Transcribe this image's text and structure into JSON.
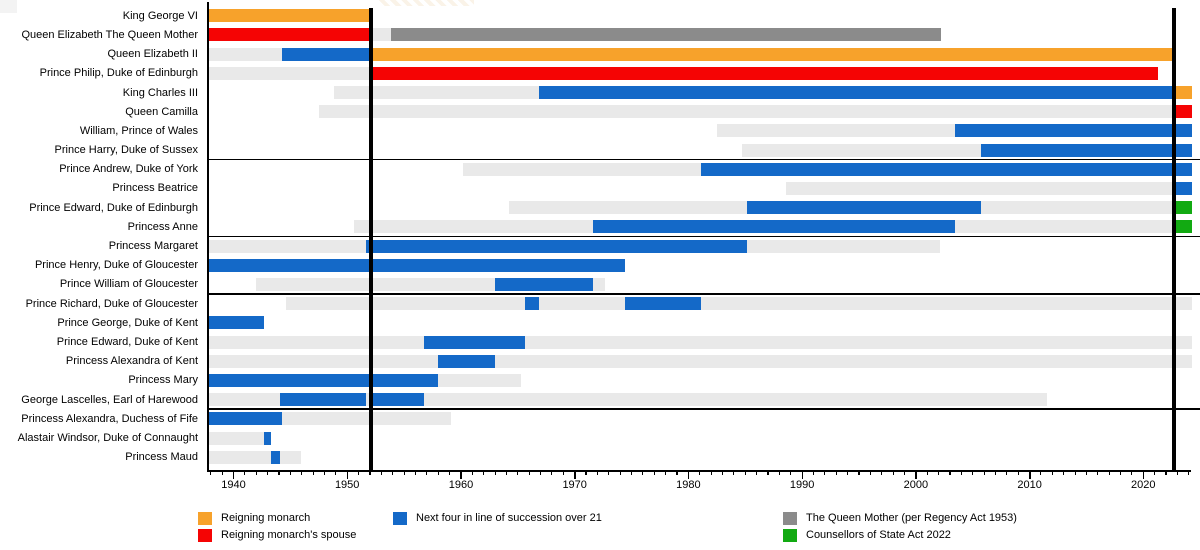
{
  "chart_data": {
    "type": "timeline",
    "title": "",
    "x_axis": {
      "min_year": 1937.85,
      "max_year": 2024.25,
      "major_ticks": [
        1940,
        1950,
        1960,
        1970,
        1980,
        1990,
        2000,
        2010,
        2020
      ],
      "minor_tick_step": 1
    },
    "event_line_years": [
      1952.1,
      2022.69
    ],
    "group_separators_after_rows": [
      7,
      11,
      14,
      20
    ],
    "colors": {
      "monarch": "#F7A22B",
      "spouse": "#F50404",
      "next_four": "#1469C8",
      "queen_mother": "#8B8B8B",
      "act2022": "#12AA12",
      "alive": "#E9E9E9",
      "line": "#000000"
    },
    "legend": [
      {
        "key": "monarch",
        "label": "Reigning monarch"
      },
      {
        "key": "spouse",
        "label": "Reigning monarch's spouse"
      },
      {
        "key": "next_four",
        "label": "Next four in line of succession over 21"
      },
      {
        "key": "queen_mother",
        "label": "The Queen Mother (per Regency Act 1953)"
      },
      {
        "key": "act2022",
        "label": "Counsellors of State Act 2022"
      }
    ],
    "rows": [
      {
        "label": "King George VI",
        "segments": [
          [
            "monarch",
            1937.85,
            1952.1
          ]
        ]
      },
      {
        "label": "Queen Elizabeth The Queen Mother",
        "segments": [
          [
            "spouse",
            1937.85,
            1952.1
          ],
          [
            "alive",
            1952.1,
            1953.88
          ],
          [
            "queen_mother",
            1953.88,
            2002.24
          ]
        ]
      },
      {
        "label": "Queen Elizabeth II",
        "segments": [
          [
            "alive",
            1937.85,
            1944.3
          ],
          [
            "next_four",
            1944.3,
            1952.1
          ],
          [
            "monarch",
            1952.1,
            2022.69
          ]
        ]
      },
      {
        "label": "Prince Philip, Duke of Edinburgh",
        "segments": [
          [
            "alive",
            1937.85,
            1952.1
          ],
          [
            "spouse",
            1952.1,
            2021.27
          ]
        ]
      },
      {
        "label": "King Charles III",
        "segments": [
          [
            "alive",
            1948.87,
            1966.87
          ],
          [
            "next_four",
            1966.87,
            2022.69
          ],
          [
            "monarch",
            2022.69,
            2024.25
          ]
        ]
      },
      {
        "label": "Queen Camilla",
        "segments": [
          [
            "alive",
            1947.54,
            2022.69
          ],
          [
            "spouse",
            2022.69,
            2024.25
          ]
        ]
      },
      {
        "label": "William, Prince of Wales",
        "segments": [
          [
            "alive",
            1982.47,
            2003.47
          ],
          [
            "next_four",
            2003.47,
            2024.25
          ]
        ]
      },
      {
        "label": "Prince Harry, Duke of Sussex",
        "segments": [
          [
            "alive",
            1984.71,
            2005.71
          ],
          [
            "next_four",
            2005.71,
            2024.25
          ]
        ]
      },
      {
        "label": "Prince Andrew, Duke of York",
        "segments": [
          [
            "alive",
            1960.14,
            1981.14
          ],
          [
            "next_four",
            1981.14,
            2024.25
          ]
        ]
      },
      {
        "label": "Princess Beatrice",
        "segments": [
          [
            "alive",
            1988.6,
            2022.69
          ],
          [
            "next_four",
            2022.69,
            2024.25
          ]
        ]
      },
      {
        "label": "Prince Edward, Duke of Edinburgh",
        "segments": [
          [
            "alive",
            1964.19,
            1985.19
          ],
          [
            "next_four",
            1985.19,
            2005.71
          ],
          [
            "alive",
            2005.71,
            2022.69
          ],
          [
            "act2022",
            2022.69,
            2024.25
          ]
        ]
      },
      {
        "label": "Princess Anne",
        "segments": [
          [
            "alive",
            1950.62,
            1971.62
          ],
          [
            "next_four",
            1971.62,
            2003.47
          ],
          [
            "alive",
            2003.47,
            2022.69
          ],
          [
            "act2022",
            2022.69,
            2024.25
          ]
        ]
      },
      {
        "label": "Princess Margaret",
        "segments": [
          [
            "alive",
            1937.85,
            1951.64
          ],
          [
            "next_four",
            1951.64,
            1985.19
          ],
          [
            "alive",
            1985.19,
            2002.11
          ]
        ]
      },
      {
        "label": "Prince Henry, Duke of Gloucester",
        "segments": [
          [
            "next_four",
            1937.85,
            1974.44
          ]
        ]
      },
      {
        "label": "Prince William of Gloucester",
        "segments": [
          [
            "alive",
            1941.96,
            1962.96
          ],
          [
            "next_four",
            1962.96,
            1971.62
          ],
          [
            "alive",
            1971.62,
            1972.66
          ]
        ]
      },
      {
        "label": "Prince Richard, Duke of Gloucester",
        "segments": [
          [
            "alive",
            1944.65,
            1965.65
          ],
          [
            "next_four",
            1965.65,
            1966.87
          ],
          [
            "alive",
            1966.87,
            1974.44
          ],
          [
            "next_four",
            1974.44,
            1981.14
          ],
          [
            "alive",
            1981.14,
            2024.25
          ]
        ]
      },
      {
        "label": "Prince George, Duke of Kent",
        "segments": [
          [
            "next_four",
            1937.85,
            1942.65
          ]
        ]
      },
      {
        "label": "Prince Edward, Duke of Kent",
        "segments": [
          [
            "alive",
            1937.85,
            1956.77
          ],
          [
            "next_four",
            1956.77,
            1965.65
          ],
          [
            "alive",
            1965.65,
            2024.25
          ]
        ]
      },
      {
        "label": "Princess Alexandra of Kent",
        "segments": [
          [
            "alive",
            1937.85,
            1957.98
          ],
          [
            "next_four",
            1957.98,
            1962.96
          ],
          [
            "alive",
            1962.96,
            2024.25
          ]
        ]
      },
      {
        "label": "Princess Mary",
        "segments": [
          [
            "next_four",
            1937.85,
            1957.98
          ],
          [
            "alive",
            1957.98,
            1965.24
          ]
        ]
      },
      {
        "label": "George Lascelles, Earl of Harewood",
        "segments": [
          [
            "alive",
            1937.85,
            1944.1
          ],
          [
            "next_four",
            1944.1,
            1951.64
          ],
          [
            "alive",
            1951.64,
            1952.1
          ],
          [
            "next_four",
            1952.1,
            1956.77
          ],
          [
            "alive",
            1956.77,
            2011.52
          ]
        ]
      },
      {
        "label": "Princess Alexandra, Duchess of Fife",
        "segments": [
          [
            "next_four",
            1937.85,
            1944.3
          ],
          [
            "alive",
            1944.3,
            1959.15
          ]
        ]
      },
      {
        "label": "Alastair Windsor, Duke of Connaught",
        "segments": [
          [
            "alive",
            1937.85,
            1942.65
          ],
          [
            "next_four",
            1942.65,
            1943.32
          ]
        ]
      },
      {
        "label": "Princess Maud",
        "segments": [
          [
            "alive",
            1937.85,
            1943.32
          ],
          [
            "next_four",
            1943.32,
            1944.1
          ],
          [
            "alive",
            1944.1,
            1945.95
          ]
        ]
      }
    ]
  }
}
